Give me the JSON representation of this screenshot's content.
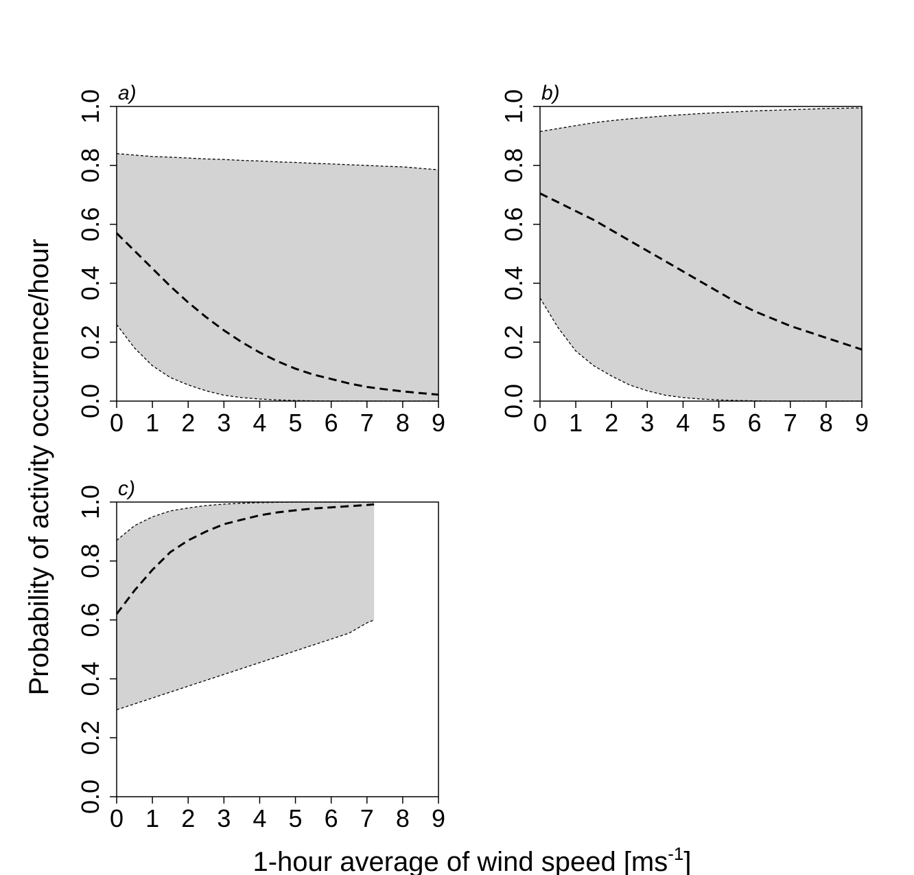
{
  "figure": {
    "ylabel": "Probability of activity occurrence/hour",
    "xlabel_main": "1-hour average of wind speed [ms",
    "xlabel_sup": "-1",
    "xlabel_close": "]"
  },
  "chart_data": [
    {
      "type": "line",
      "panel_label": "a)",
      "xlim": [
        0,
        9
      ],
      "ylim": [
        0,
        1
      ],
      "xticks": [
        0,
        1,
        2,
        3,
        4,
        5,
        6,
        7,
        8,
        9
      ],
      "yticks": [
        "0.0",
        "0.2",
        "0.4",
        "0.6",
        "0.8",
        "1.0"
      ],
      "x": [
        0,
        0.5,
        1,
        1.5,
        2,
        2.5,
        3,
        3.5,
        4,
        4.5,
        5,
        5.5,
        6,
        6.5,
        7,
        7.5,
        8,
        8.5,
        9
      ],
      "series": [
        {
          "role": "upper",
          "values": [
            0.84,
            0.835,
            0.83,
            0.828,
            0.825,
            0.822,
            0.82,
            0.817,
            0.815,
            0.812,
            0.81,
            0.807,
            0.805,
            0.802,
            0.8,
            0.797,
            0.795,
            0.79,
            0.785
          ]
        },
        {
          "role": "mean",
          "values": [
            0.57,
            0.51,
            0.45,
            0.39,
            0.335,
            0.285,
            0.24,
            0.2,
            0.165,
            0.135,
            0.11,
            0.09,
            0.075,
            0.06,
            0.048,
            0.04,
            0.033,
            0.027,
            0.022
          ]
        },
        {
          "role": "lower",
          "values": [
            0.26,
            0.18,
            0.12,
            0.08,
            0.055,
            0.035,
            0.02,
            0.012,
            0.007,
            0.004,
            0.002,
            0.001,
            0.0,
            0.0,
            0.0,
            0.0,
            0.0,
            0.0,
            0.0
          ]
        }
      ]
    },
    {
      "type": "line",
      "panel_label": "b)",
      "xlim": [
        0,
        9
      ],
      "ylim": [
        0,
        1
      ],
      "xticks": [
        0,
        1,
        2,
        3,
        4,
        5,
        6,
        7,
        8,
        9
      ],
      "yticks": [
        "0.0",
        "0.2",
        "0.4",
        "0.6",
        "0.8",
        "1.0"
      ],
      "x": [
        0,
        0.5,
        1,
        1.5,
        2,
        2.5,
        3,
        3.5,
        4,
        4.5,
        5,
        5.5,
        6,
        6.5,
        7,
        7.5,
        8,
        8.5,
        9
      ],
      "series": [
        {
          "role": "upper",
          "values": [
            0.915,
            0.925,
            0.935,
            0.945,
            0.952,
            0.958,
            0.963,
            0.968,
            0.972,
            0.976,
            0.979,
            0.982,
            0.985,
            0.987,
            0.989,
            0.991,
            0.993,
            0.994,
            0.995
          ]
        },
        {
          "role": "mean",
          "values": [
            0.705,
            0.675,
            0.645,
            0.615,
            0.58,
            0.545,
            0.51,
            0.475,
            0.44,
            0.405,
            0.37,
            0.335,
            0.305,
            0.28,
            0.255,
            0.235,
            0.215,
            0.195,
            0.175
          ]
        },
        {
          "role": "lower",
          "values": [
            0.35,
            0.25,
            0.17,
            0.12,
            0.085,
            0.055,
            0.035,
            0.02,
            0.012,
            0.007,
            0.004,
            0.002,
            0.001,
            0.0,
            0.0,
            0.0,
            0.0,
            0.0,
            0.0
          ]
        }
      ]
    },
    {
      "type": "line",
      "panel_label": "c)",
      "xlim": [
        0,
        9
      ],
      "ylim": [
        0,
        1
      ],
      "xticks": [
        0,
        1,
        2,
        3,
        4,
        5,
        6,
        7,
        8,
        9
      ],
      "yticks": [
        "0.0",
        "0.2",
        "0.4",
        "0.6",
        "0.8",
        "1.0"
      ],
      "x": [
        0,
        0.5,
        1,
        1.5,
        2,
        2.5,
        3,
        3.5,
        4,
        4.5,
        5,
        5.5,
        6,
        6.5,
        7,
        7.2
      ],
      "series": [
        {
          "role": "upper",
          "values": [
            0.87,
            0.92,
            0.95,
            0.97,
            0.98,
            0.988,
            0.993,
            0.996,
            0.998,
            0.999,
            1.0,
            1.0,
            1.0,
            1.0,
            1.0,
            1.0
          ]
        },
        {
          "role": "mean",
          "values": [
            0.62,
            0.7,
            0.77,
            0.83,
            0.87,
            0.9,
            0.925,
            0.94,
            0.955,
            0.965,
            0.972,
            0.978,
            0.982,
            0.986,
            0.99,
            0.992
          ]
        },
        {
          "role": "lower",
          "values": [
            0.295,
            0.315,
            0.335,
            0.355,
            0.375,
            0.395,
            0.415,
            0.435,
            0.455,
            0.475,
            0.495,
            0.515,
            0.535,
            0.555,
            0.59,
            0.6
          ]
        }
      ]
    }
  ]
}
